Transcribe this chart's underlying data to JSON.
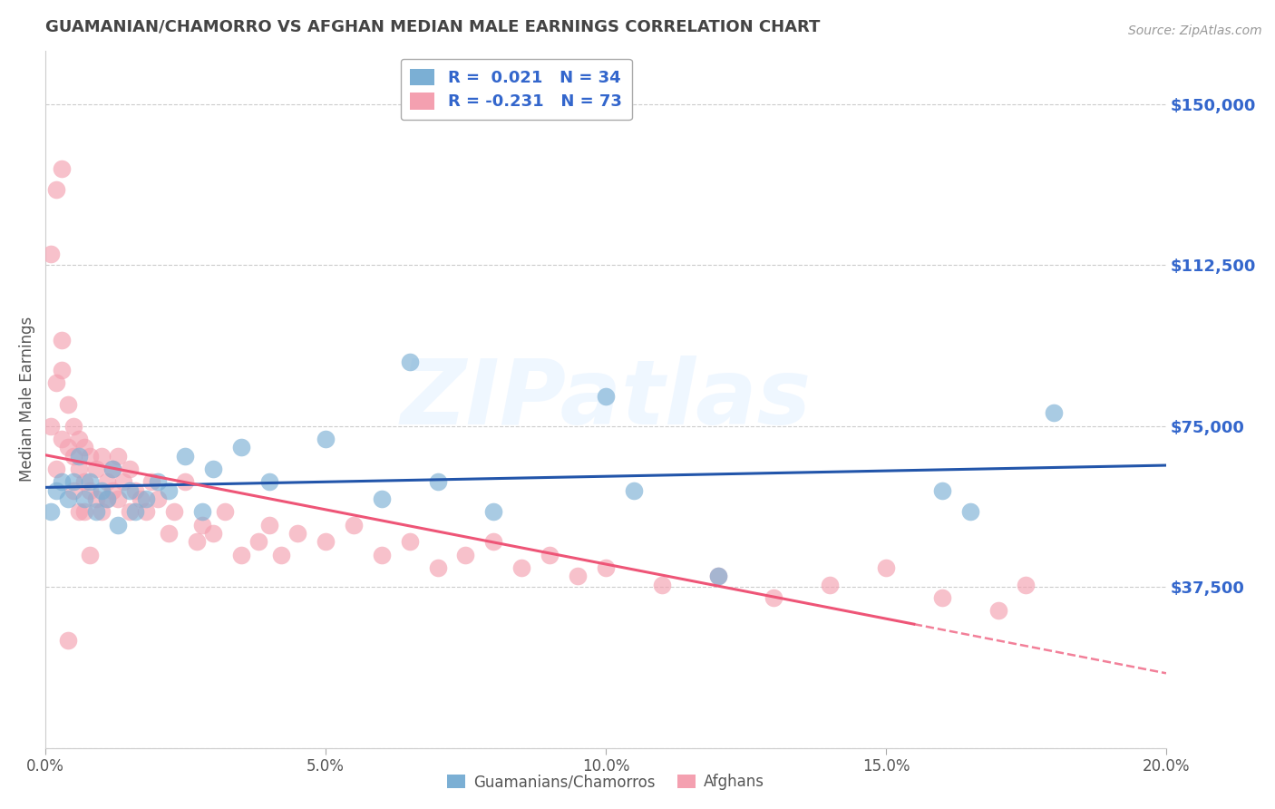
{
  "title": "GUAMANIAN/CHAMORRO VS AFGHAN MEDIAN MALE EARNINGS CORRELATION CHART",
  "source": "Source: ZipAtlas.com",
  "ylabel": "Median Male Earnings",
  "xlim": [
    0.0,
    0.2
  ],
  "ylim": [
    0,
    162500
  ],
  "yticks": [
    0,
    37500,
    75000,
    112500,
    150000
  ],
  "ytick_labels": [
    "",
    "$37,500",
    "$75,000",
    "$112,500",
    "$150,000"
  ],
  "xticks": [
    0.0,
    0.05,
    0.1,
    0.15,
    0.2
  ],
  "xtick_labels": [
    "0.0%",
    "5.0%",
    "10.0%",
    "15.0%",
    "20.0%"
  ],
  "legend_line1": "R =  0.021   N = 34",
  "legend_line2": "R = -0.231   N = 73",
  "legend_label_blue": "Guamanians/Chamorros",
  "legend_label_pink": "Afghans",
  "blue_color": "#7BAFD4",
  "pink_color": "#F4A0B0",
  "trend_blue_color": "#2255AA",
  "trend_pink_color": "#EE5577",
  "watermark_text": "ZIPatlas",
  "title_color": "#444444",
  "axis_label_color": "#555555",
  "ytick_color": "#3366CC",
  "background_color": "#FFFFFF",
  "grid_color": "#CCCCCC",
  "blue_scatter_x": [
    0.001,
    0.002,
    0.003,
    0.004,
    0.005,
    0.006,
    0.007,
    0.008,
    0.009,
    0.01,
    0.011,
    0.012,
    0.013,
    0.015,
    0.016,
    0.018,
    0.02,
    0.022,
    0.025,
    0.028,
    0.03,
    0.035,
    0.04,
    0.05,
    0.06,
    0.065,
    0.07,
    0.08,
    0.1,
    0.105,
    0.12,
    0.16,
    0.165,
    0.18
  ],
  "blue_scatter_y": [
    55000,
    60000,
    62000,
    58000,
    62000,
    68000,
    58000,
    62000,
    55000,
    60000,
    58000,
    65000,
    52000,
    60000,
    55000,
    58000,
    62000,
    60000,
    68000,
    55000,
    65000,
    70000,
    62000,
    72000,
    58000,
    90000,
    62000,
    55000,
    82000,
    60000,
    40000,
    60000,
    55000,
    78000
  ],
  "pink_scatter_x": [
    0.001,
    0.001,
    0.002,
    0.002,
    0.003,
    0.003,
    0.003,
    0.004,
    0.004,
    0.005,
    0.005,
    0.005,
    0.006,
    0.006,
    0.007,
    0.007,
    0.007,
    0.008,
    0.008,
    0.009,
    0.009,
    0.01,
    0.01,
    0.011,
    0.011,
    0.012,
    0.012,
    0.013,
    0.013,
    0.014,
    0.015,
    0.015,
    0.016,
    0.017,
    0.018,
    0.019,
    0.02,
    0.022,
    0.023,
    0.025,
    0.027,
    0.028,
    0.03,
    0.032,
    0.035,
    0.038,
    0.04,
    0.042,
    0.045,
    0.05,
    0.055,
    0.06,
    0.065,
    0.07,
    0.075,
    0.08,
    0.085,
    0.09,
    0.095,
    0.1,
    0.11,
    0.12,
    0.13,
    0.14,
    0.15,
    0.16,
    0.17,
    0.175,
    0.002,
    0.003,
    0.004,
    0.006,
    0.008
  ],
  "pink_scatter_y": [
    115000,
    75000,
    85000,
    65000,
    95000,
    88000,
    72000,
    80000,
    70000,
    75000,
    68000,
    60000,
    72000,
    65000,
    70000,
    62000,
    55000,
    68000,
    60000,
    65000,
    58000,
    68000,
    55000,
    62000,
    58000,
    65000,
    60000,
    58000,
    68000,
    62000,
    65000,
    55000,
    60000,
    58000,
    55000,
    62000,
    58000,
    50000,
    55000,
    62000,
    48000,
    52000,
    50000,
    55000,
    45000,
    48000,
    52000,
    45000,
    50000,
    48000,
    52000,
    45000,
    48000,
    42000,
    45000,
    48000,
    42000,
    45000,
    40000,
    42000,
    38000,
    40000,
    35000,
    38000,
    42000,
    35000,
    32000,
    38000,
    130000,
    135000,
    25000,
    55000,
    45000
  ]
}
